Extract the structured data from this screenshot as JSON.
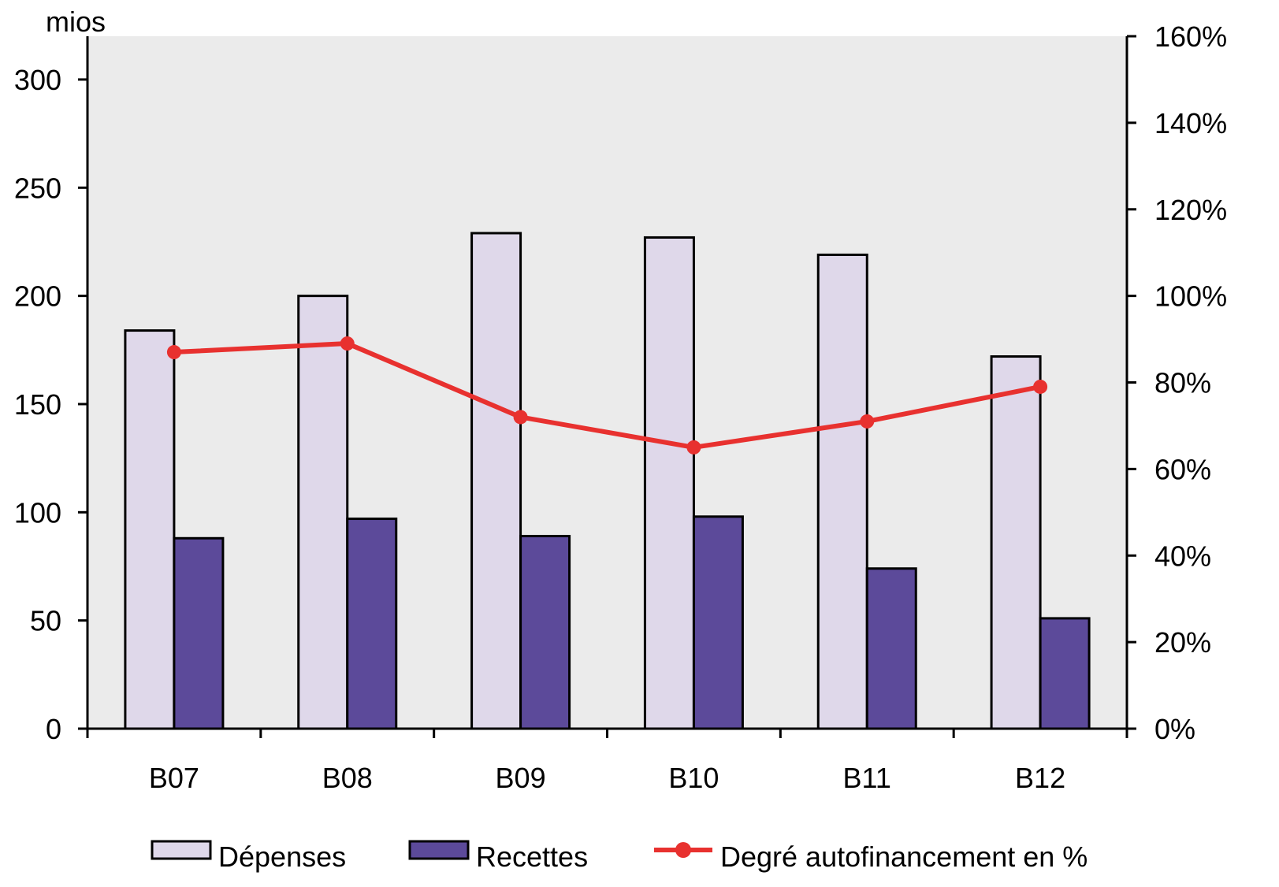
{
  "chart_data": {
    "type": "bar",
    "categories": [
      "B07",
      "B08",
      "B09",
      "B10",
      "B11",
      "B12"
    ],
    "series": [
      {
        "name": "Dépenses",
        "kind": "bar",
        "axis": "left",
        "color": "#dfd8ea",
        "values": [
          184,
          200,
          229,
          227,
          219,
          172
        ]
      },
      {
        "name": "Recettes",
        "kind": "bar",
        "axis": "left",
        "color": "#5c4a9a",
        "values": [
          88,
          97,
          89,
          98,
          74,
          51
        ]
      },
      {
        "name": "Degré autofinancement en %",
        "kind": "line",
        "axis": "right",
        "color": "#e8312f",
        "values": [
          87,
          89,
          72,
          65,
          71,
          79
        ]
      }
    ],
    "left_axis": {
      "unit_label": "mios",
      "ylim": [
        0,
        320
      ],
      "ticks": [
        "0",
        "50",
        "100",
        "150",
        "200",
        "250",
        "300"
      ]
    },
    "right_axis": {
      "ylim": [
        0,
        160
      ],
      "ticks": [
        "0%",
        "20%",
        "40%",
        "60%",
        "80%",
        "100%",
        "120%",
        "140%",
        "160%"
      ]
    },
    "plot_background": "#ebebeb",
    "grid": false,
    "legend_position": "bottom"
  }
}
